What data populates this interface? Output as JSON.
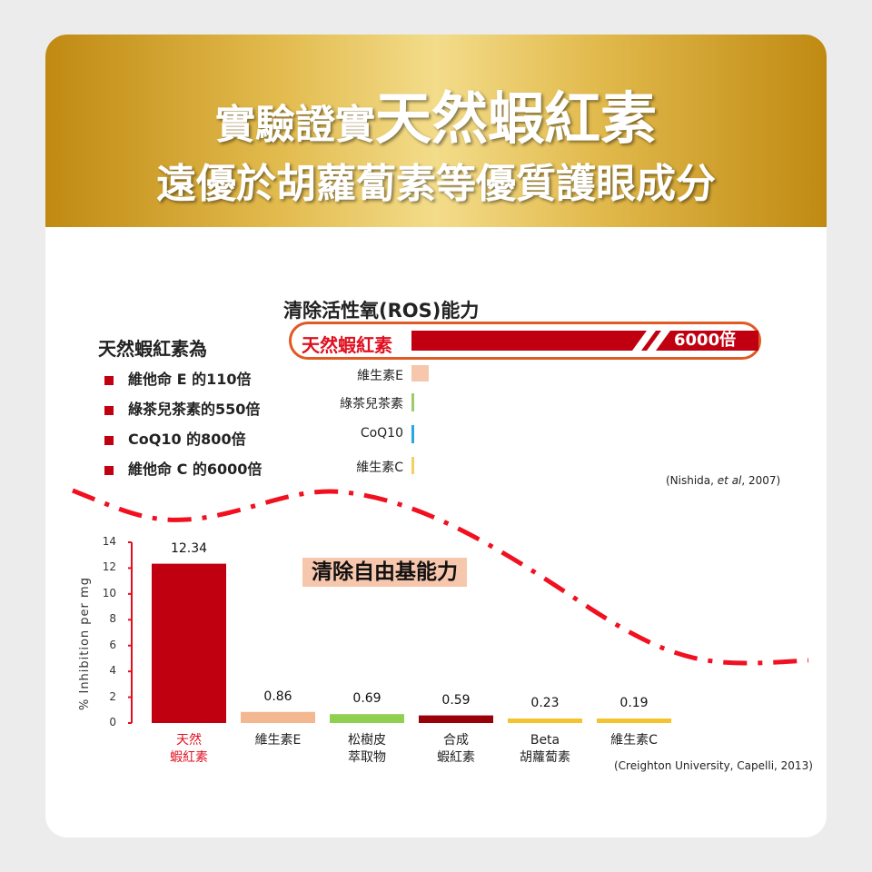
{
  "header": {
    "line1_prefix": "實驗證實",
    "line1_emphasis": "天然蝦紅素",
    "line2": "遠優於胡蘿蔔素等優質護眼成分"
  },
  "list": {
    "title": "天然蝦紅素為",
    "items": [
      "維他命 E 的110倍",
      "綠茶兒茶素的550倍",
      "CoQ10 的800倍",
      "維他命 C 的6000倍"
    ]
  },
  "chart_data": [
    {
      "type": "bar",
      "orientation": "horizontal",
      "title": "清除活性氧(ROS)能力",
      "categories": [
        "天然蝦紅素",
        "維生素E",
        "綠茶兒茶素",
        "CoQ10",
        "維生素C"
      ],
      "values": [
        6000,
        110,
        550,
        800,
        1
      ],
      "highlight_label": "6000倍",
      "axis_break": true,
      "colors": [
        "#c00010",
        "#f6c6ad",
        "#9ccc6a",
        "#29a8e0",
        "#f4d060"
      ],
      "source": "(Nishida, et al, 2007)"
    },
    {
      "type": "bar",
      "title": "清除自由基能力",
      "ylabel": "% Inhibition per mg",
      "ylim": [
        0,
        14
      ],
      "yticks": [
        0,
        2,
        4,
        6,
        8,
        10,
        12,
        14
      ],
      "categories": [
        [
          "天然",
          "蝦紅素"
        ],
        [
          "維生素E"
        ],
        [
          "松樹皮",
          "萃取物"
        ],
        [
          "合成",
          "蝦紅素"
        ],
        [
          "Beta",
          "胡蘿蔔素"
        ],
        [
          "維生素C"
        ]
      ],
      "values": [
        12.34,
        0.86,
        0.69,
        0.59,
        0.23,
        0.19
      ],
      "value_labels": [
        "12.34",
        "0.86",
        "0.69",
        "0.59",
        "0.23",
        "0.19"
      ],
      "colors": [
        "#c00010",
        "#f3b88f",
        "#8fd050",
        "#9a0008",
        "#f4c430",
        "#f4c430"
      ],
      "source": "(Creighton University, Capelli, 2013)"
    }
  ]
}
